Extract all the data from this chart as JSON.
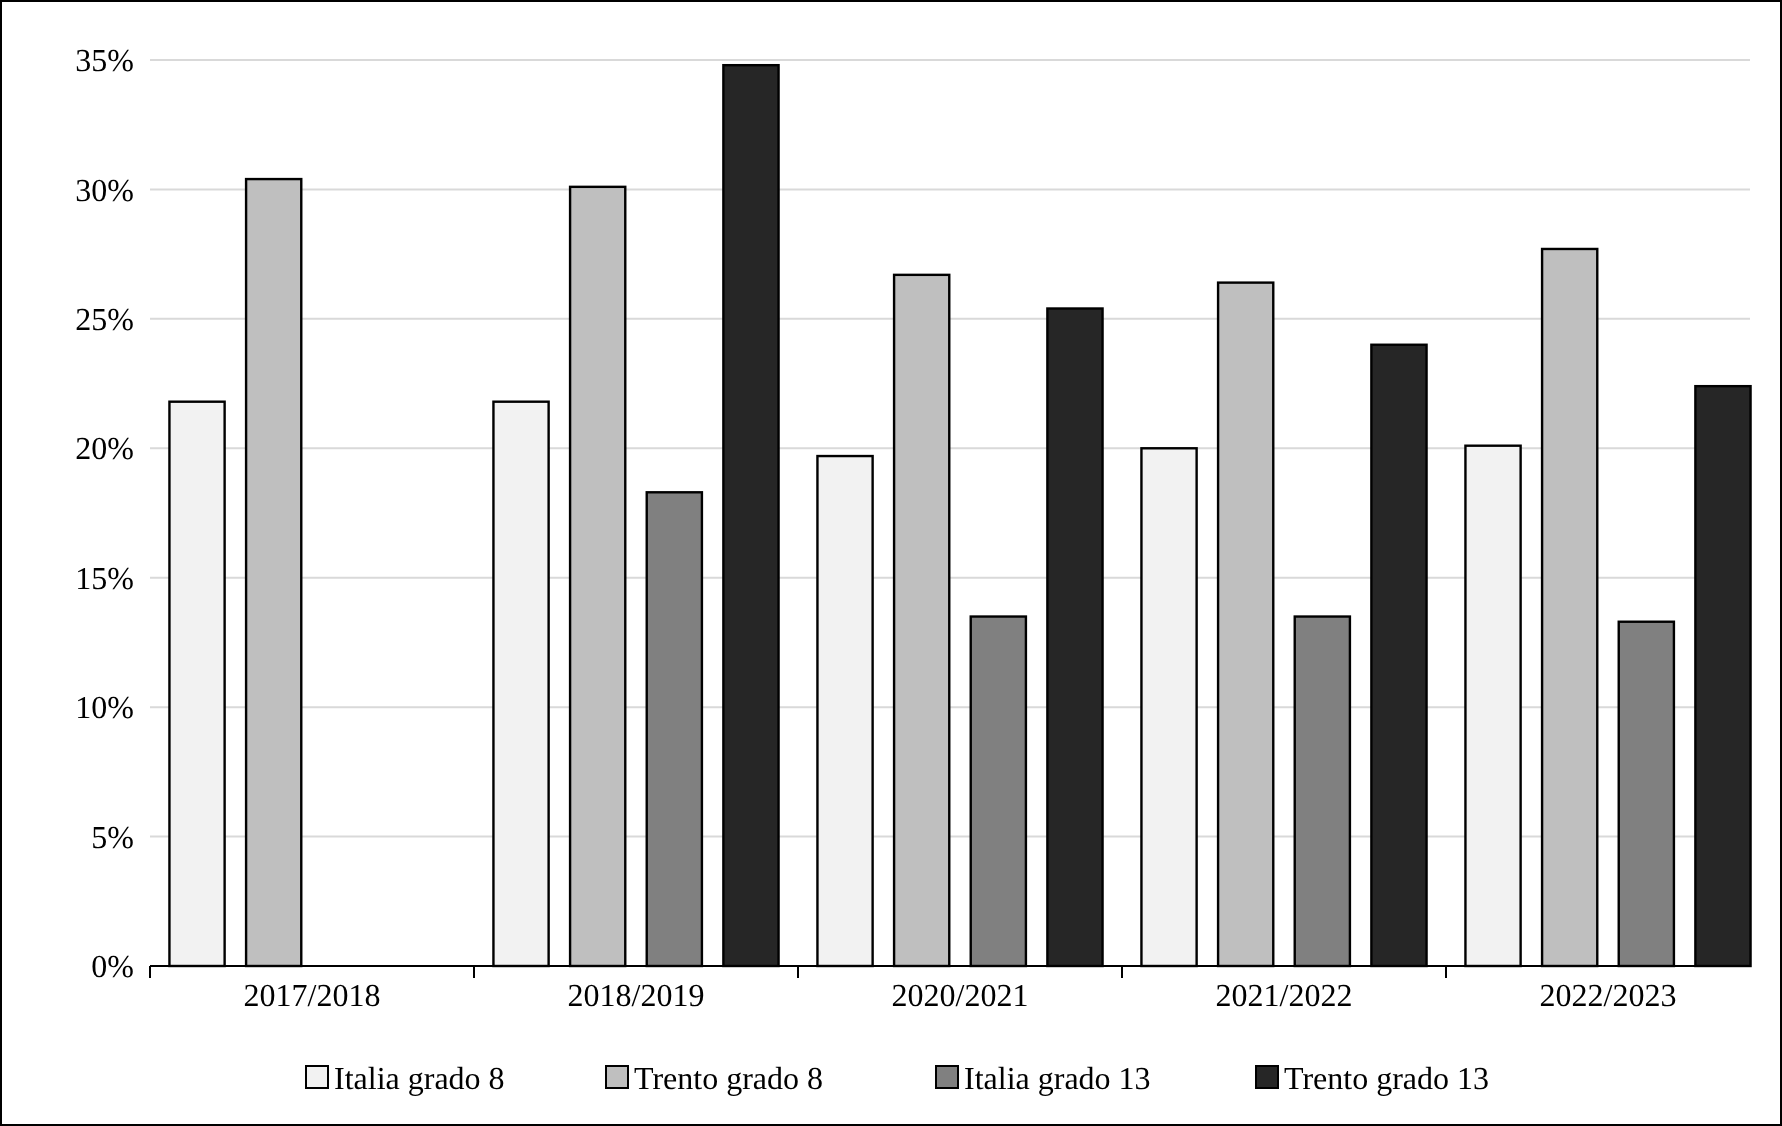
{
  "chart_data": {
    "type": "bar",
    "categories": [
      "2017/2018",
      "2018/2019",
      "2020/2021",
      "2021/2022",
      "2022/2023"
    ],
    "series": [
      {
        "name": "Italia grado 8",
        "color": "#f2f2f2",
        "values": [
          21.8,
          21.8,
          19.7,
          20.0,
          20.1
        ]
      },
      {
        "name": "Trento grado 8",
        "color": "#bfbfbf",
        "values": [
          30.4,
          30.1,
          26.7,
          26.4,
          27.7
        ]
      },
      {
        "name": "Italia grado 13",
        "color": "#808080",
        "values": [
          null,
          18.3,
          13.5,
          13.5,
          13.3
        ]
      },
      {
        "name": "Trento grado 13",
        "color": "#262626",
        "values": [
          null,
          34.8,
          25.4,
          24.0,
          22.4
        ]
      }
    ],
    "ylim": [
      0,
      35
    ],
    "yticks": [
      {
        "value": 0,
        "label": "0%"
      },
      {
        "value": 5,
        "label": "5%"
      },
      {
        "value": 10,
        "label": "10%"
      },
      {
        "value": 15,
        "label": "15%"
      },
      {
        "value": 20,
        "label": "20%"
      },
      {
        "value": 25,
        "label": "25%"
      },
      {
        "value": 30,
        "label": "30%"
      },
      {
        "value": 35,
        "label": "35%"
      }
    ],
    "grid": "y",
    "legend": "bottom"
  }
}
